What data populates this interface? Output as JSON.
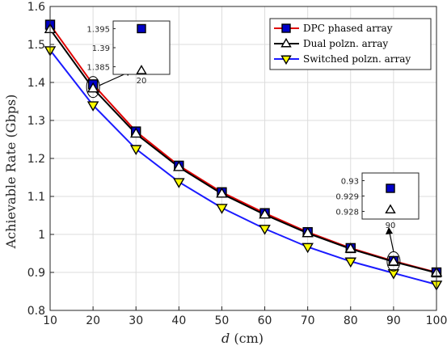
{
  "chart_data": {
    "type": "line",
    "xlabel": "(cm)",
    "xlabel_var": "d",
    "ylabel": "Achievable Rate (Gbps)",
    "xlim": [
      10,
      100
    ],
    "ylim": [
      0.8,
      1.6
    ],
    "x": [
      10,
      20,
      30,
      40,
      50,
      60,
      70,
      80,
      90,
      100
    ],
    "xticks": [
      "10",
      "20",
      "30",
      "40",
      "50",
      "60",
      "70",
      "80",
      "90",
      "100"
    ],
    "yticks": [
      "0.8",
      "0.9",
      "1",
      "1.1",
      "1.2",
      "1.3",
      "1.4",
      "1.5",
      "1.6"
    ],
    "grid": true,
    "legend_position": "top-right",
    "series": [
      {
        "name": "DPC phased array",
        "color": "#e00000",
        "marker": "square",
        "marker_color": "#0000c8",
        "values": [
          1.552,
          1.395,
          1.271,
          1.181,
          1.111,
          1.056,
          1.006,
          0.964,
          0.93,
          0.9
        ]
      },
      {
        "name": "Dual polzn. array",
        "color": "#000000",
        "marker": "triangle-up",
        "marker_color": "#ffffff",
        "values": [
          1.54,
          1.384,
          1.265,
          1.177,
          1.107,
          1.052,
          1.003,
          0.962,
          0.928,
          0.899
        ]
      },
      {
        "name": "Switched polzn. array",
        "color": "#1a1aff",
        "marker": "triangle-down",
        "marker_color": "#ffff00",
        "values": [
          1.485,
          1.34,
          1.225,
          1.138,
          1.07,
          1.015,
          0.967,
          0.929,
          0.898,
          0.868
        ]
      }
    ],
    "insets": [
      {
        "x_label": "20",
        "yticks": [
          "1.395",
          "1.39",
          "1.385"
        ],
        "ylim": [
          1.383,
          1.397
        ],
        "points": [
          {
            "series": 0,
            "value": 1.395
          },
          {
            "series": 1,
            "value": 1.384
          }
        ]
      },
      {
        "x_label": "90",
        "yticks": [
          "0.93",
          "0.929",
          "0.928"
        ],
        "ylim": [
          0.9275,
          0.9305
        ],
        "points": [
          {
            "series": 0,
            "value": 0.9295
          },
          {
            "series": 1,
            "value": 0.9281
          }
        ]
      }
    ]
  }
}
